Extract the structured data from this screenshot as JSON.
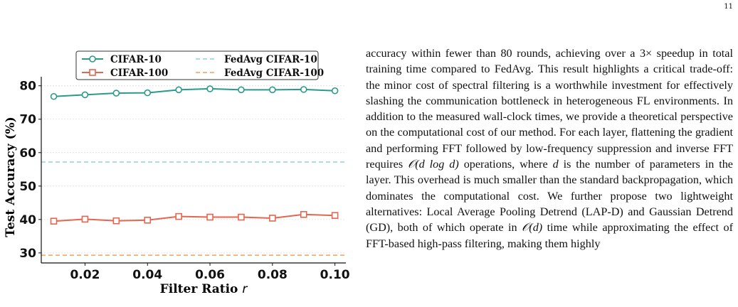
{
  "page_number": "11",
  "paragraph": {
    "part1": "accuracy within fewer than 80 rounds, achieving over a 3× speedup in total training time compared to FedAvg. This result highlights a critical trade-off: the minor cost of spectral filtering is a worthwhile investment for effectively slashing the communication bottleneck in heterogeneous FL environments. In addition to the measured wall-clock times, we provide a theoretical perspective on the computational cost of our method. For each layer, flattening the gradient and performing FFT followed by low-frequency suppression and inverse FFT requires ",
    "math1": "𝒪(d log d)",
    "part2": " operations, where ",
    "math2": "d",
    "part3": " is the number of parameters in the layer. This overhead is much smaller than the standard backpropagation, which dominates the computational cost. We further propose two lightweight alternatives: Local Average Pooling Detrend (LAP-D) and Gaussian Detrend (GD), both of which operate in ",
    "math3": "𝒪(d)",
    "part4": " time while approximating the effect of FFT-based high-pass filtering, making them highly"
  },
  "chart_data": {
    "type": "line",
    "xlabel": "Filter Ratio r",
    "ylabel": "Test Accuracy (%)",
    "x": [
      0.01,
      0.02,
      0.03,
      0.04,
      0.05,
      0.06,
      0.07,
      0.08,
      0.09,
      0.1
    ],
    "xticks": [
      "0.02",
      "0.04",
      "0.06",
      "0.08",
      "0.10"
    ],
    "yticks": [
      "30",
      "40",
      "50",
      "60",
      "70",
      "80"
    ],
    "xlim": [
      0.006,
      0.1035
    ],
    "ylim": [
      27,
      81
    ],
    "grid": "horizontal",
    "legend_position": "top",
    "series": [
      {
        "name": "CIFAR-10",
        "color": "#2a9a8a",
        "marker": "circle",
        "values": [
          76.8,
          77.3,
          77.8,
          77.9,
          78.8,
          79.1,
          78.8,
          78.8,
          78.9,
          78.5
        ]
      },
      {
        "name": "CIFAR-100",
        "color": "#e5664e",
        "marker": "square",
        "values": [
          39.5,
          40.1,
          39.6,
          39.8,
          40.9,
          40.7,
          40.7,
          40.4,
          41.5,
          41.2
        ]
      }
    ],
    "reference_lines": [
      {
        "name": "FedAvg CIFAR-10",
        "color": "#8fd3d9",
        "value": 57.2
      },
      {
        "name": "FedAvg CIFAR-100",
        "color": "#f2a15c",
        "value": 29.3
      }
    ]
  }
}
